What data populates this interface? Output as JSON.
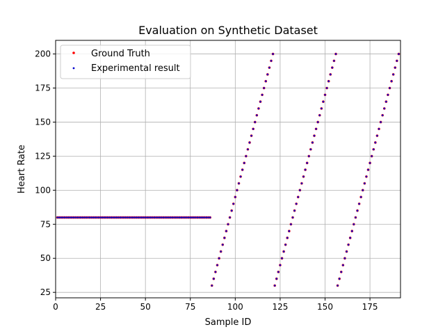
{
  "chart_data": {
    "type": "scatter",
    "title": "Evaluation on Synthetic Dataset",
    "xlabel": "Sample ID",
    "ylabel": "Heart Rate",
    "xlim": [
      0,
      192
    ],
    "ylim": [
      21,
      210
    ],
    "xticks": [
      0,
      25,
      50,
      75,
      100,
      125,
      150,
      175
    ],
    "yticks": [
      25,
      50,
      75,
      100,
      125,
      150,
      175,
      200
    ],
    "grid": true,
    "legend_position": "upper-left",
    "series": [
      {
        "name": "Ground Truth",
        "color": "#ff0000",
        "marker": "dot"
      },
      {
        "name": "Experimental result",
        "color": "#0000cc",
        "marker": "dot"
      }
    ],
    "segments": [
      {
        "x_start": 1,
        "x_end": 86,
        "y_start": 80,
        "y_step": 0
      },
      {
        "x_start": 87,
        "x_end": 121,
        "y_start": 30,
        "y_step": 5
      },
      {
        "x_start": 122,
        "x_end": 156,
        "y_start": 30,
        "y_step": 5
      },
      {
        "x_start": 157,
        "x_end": 191,
        "y_start": 30,
        "y_step": 5
      }
    ],
    "note_values": "Each series contains one point per Sample ID. Flat segment at Heart Rate 80 for Sample ID 1-86; then three ramps from 30 to 200 in steps of 5. Ground Truth and Experimental result overlap."
  }
}
